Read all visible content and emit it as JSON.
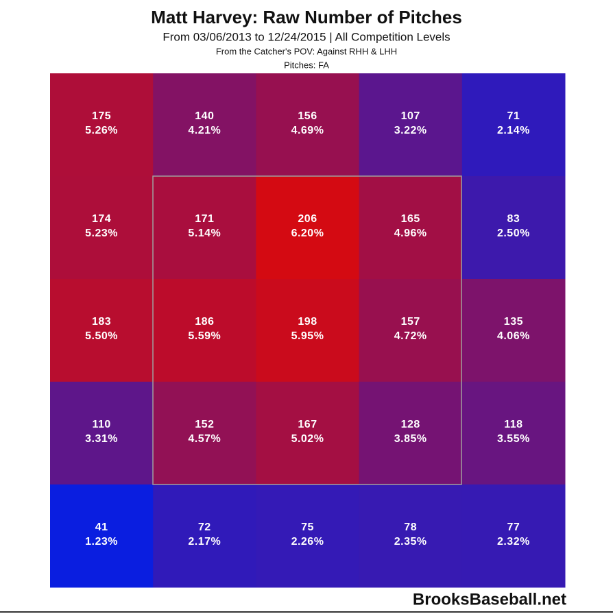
{
  "chart_data": {
    "type": "heatmap",
    "title": "Matt Harvey: Raw Number of Pitches",
    "subtitle": "From 03/06/2013 to 12/24/2015 | All Competition Levels",
    "note1": "From the Catcher's POV:  Against RHH & LHH",
    "note2": "Pitches:  FA",
    "watermark": "BrooksBaseball.net",
    "low_color": "#0a1ee0",
    "high_color": "#d40a12",
    "values": [
      [
        175,
        140,
        156,
        107,
        71
      ],
      [
        174,
        171,
        206,
        165,
        83
      ],
      [
        183,
        186,
        198,
        157,
        135
      ],
      [
        110,
        152,
        167,
        128,
        118
      ],
      [
        41,
        72,
        75,
        78,
        77
      ]
    ],
    "percents": [
      [
        "5.26%",
        "4.21%",
        "4.69%",
        "3.22%",
        "2.14%"
      ],
      [
        "5.23%",
        "5.14%",
        "6.20%",
        "4.96%",
        "2.50%"
      ],
      [
        "5.50%",
        "5.59%",
        "5.95%",
        "4.72%",
        "4.06%"
      ],
      [
        "3.31%",
        "4.57%",
        "5.02%",
        "3.85%",
        "3.55%"
      ],
      [
        "1.23%",
        "2.17%",
        "2.26%",
        "2.35%",
        "2.32%"
      ]
    ]
  }
}
